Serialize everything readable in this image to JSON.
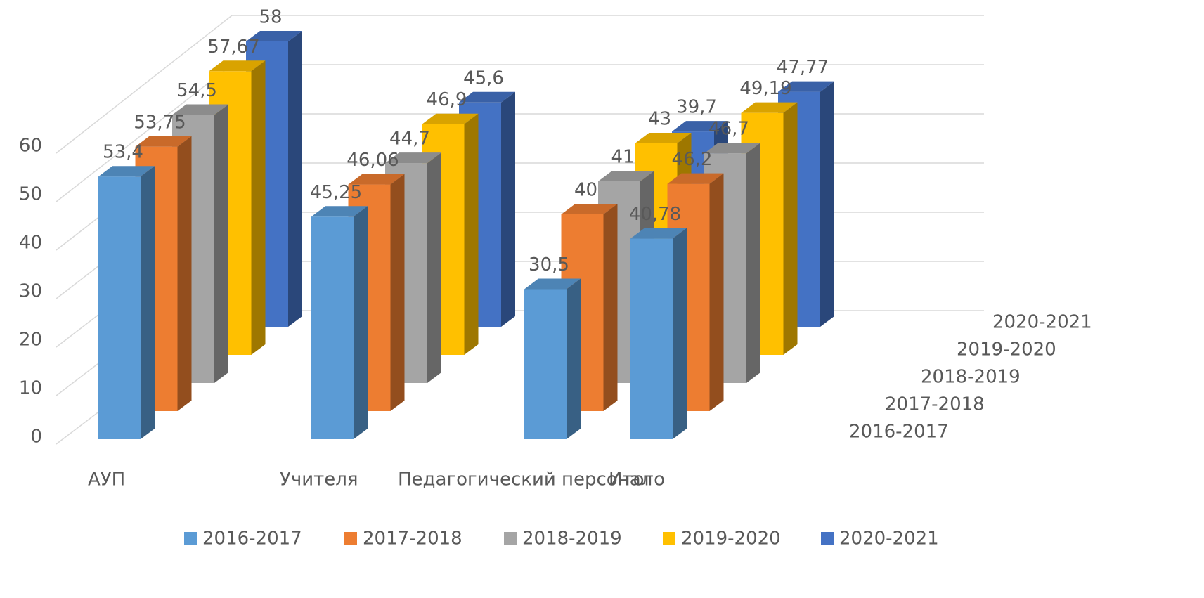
{
  "chart_data": {
    "type": "bar3d",
    "categories": [
      "АУП",
      "Учителя",
      "Педагогический персонал",
      "Итого"
    ],
    "series": [
      {
        "name": "2016-2017",
        "color": "#5b9bd5",
        "values": [
          53.4,
          45.25,
          30.5,
          40.78
        ],
        "value_labels": [
          "53,4",
          "45,25",
          "30,5",
          "40,78"
        ]
      },
      {
        "name": "2017-2018",
        "color": "#ed7d31",
        "values": [
          53.75,
          46.06,
          40,
          46.2
        ],
        "value_labels": [
          "53,75",
          "46,06",
          "40",
          "46,2"
        ]
      },
      {
        "name": "2018-2019",
        "color": "#a5a5a5",
        "values": [
          54.5,
          44.7,
          41,
          46.7
        ],
        "value_labels": [
          "54,5",
          "44,7",
          "41",
          "46,7"
        ]
      },
      {
        "name": "2019-2020",
        "color": "#ffc000",
        "values": [
          57.67,
          46.9,
          43,
          49.19
        ],
        "value_labels": [
          "57,67",
          "46,9",
          "43",
          "49,19"
        ]
      },
      {
        "name": "2020-2021",
        "color": "#4472c4",
        "values": [
          58,
          45.6,
          39.7,
          47.77
        ],
        "value_labels": [
          "58",
          "45,6",
          "39,7",
          "47,77"
        ]
      }
    ],
    "ylim": [
      0,
      60
    ],
    "yticks": [
      0,
      10,
      20,
      30,
      40,
      50,
      60
    ],
    "grid": true,
    "legend": "bottom"
  }
}
